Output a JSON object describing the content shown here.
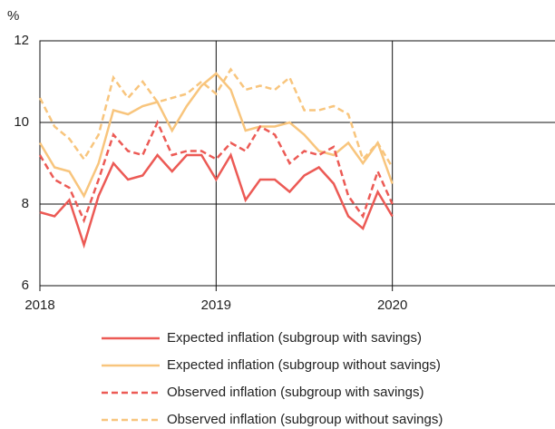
{
  "chart_data": {
    "type": "line",
    "y_label": "%",
    "x": [
      2018.0,
      2018.083,
      2018.167,
      2018.25,
      2018.333,
      2018.417,
      2018.5,
      2018.583,
      2018.667,
      2018.75,
      2018.833,
      2018.917,
      2019.0,
      2019.083,
      2019.167,
      2019.25,
      2019.333,
      2019.417,
      2019.5,
      2019.583,
      2019.667,
      2019.75,
      2019.833,
      2019.917,
      2020.0
    ],
    "xlim": [
      2018,
      2021
    ],
    "xticks": [
      2018,
      2019,
      2020
    ],
    "ylim": [
      6,
      12
    ],
    "yticks": [
      6,
      8,
      10,
      12
    ],
    "grid": true,
    "legend": "bottom",
    "series": [
      {
        "name": "Expected inflation (subgroup with savings)",
        "color": "#ec5a55",
        "dash": false,
        "values": [
          7.8,
          7.7,
          8.1,
          7.0,
          8.2,
          9.0,
          8.6,
          8.7,
          9.2,
          8.8,
          9.2,
          9.2,
          8.6,
          9.2,
          8.1,
          8.6,
          8.6,
          8.3,
          8.7,
          8.9,
          8.5,
          7.7,
          7.4,
          8.3,
          7.7
        ]
      },
      {
        "name": "Expected inflation (subgroup without savings)",
        "color": "#f8c57d",
        "dash": false,
        "values": [
          9.5,
          8.9,
          8.8,
          8.2,
          9.0,
          10.3,
          10.2,
          10.4,
          10.5,
          9.8,
          10.4,
          10.9,
          11.2,
          10.8,
          9.8,
          9.9,
          9.9,
          10.0,
          9.7,
          9.3,
          9.2,
          9.5,
          9.0,
          9.5,
          8.5
        ]
      },
      {
        "name": "Observed inflation (subgroup with savings)",
        "color": "#ec5a55",
        "dash": true,
        "values": [
          9.2,
          8.6,
          8.4,
          7.6,
          8.6,
          9.7,
          9.3,
          9.2,
          10.0,
          9.2,
          9.3,
          9.3,
          9.1,
          9.5,
          9.3,
          9.9,
          9.7,
          9.0,
          9.3,
          9.2,
          9.4,
          8.2,
          7.7,
          8.8,
          8.0
        ]
      },
      {
        "name": "Observed inflation (subgroup without savings)",
        "color": "#f8c57d",
        "dash": true,
        "values": [
          10.6,
          9.9,
          9.6,
          9.1,
          9.7,
          11.1,
          10.6,
          11.0,
          10.5,
          10.6,
          10.7,
          11.0,
          10.7,
          11.3,
          10.8,
          10.9,
          10.8,
          11.1,
          10.3,
          10.3,
          10.4,
          10.2,
          9.1,
          9.5,
          8.9
        ]
      }
    ]
  }
}
